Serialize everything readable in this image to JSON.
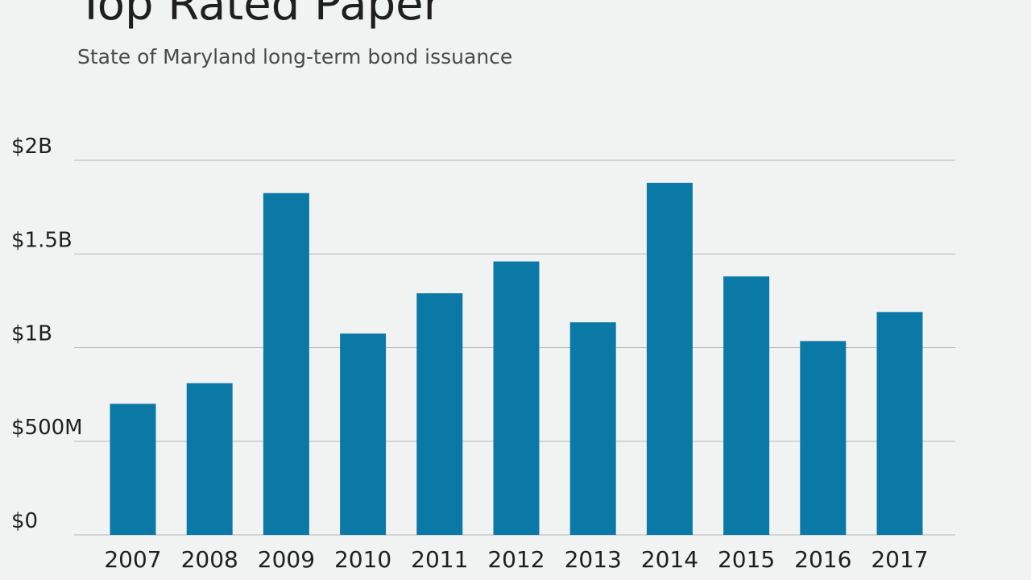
{
  "title": "Top Rated Paper",
  "subtitle": "State of Maryland long-term bond issuance",
  "chart_data": {
    "type": "bar",
    "title": "Top Rated Paper",
    "subtitle": "State of Maryland long-term bond issuance",
    "xlabel": "",
    "ylabel": "",
    "categories": [
      "2007",
      "2008",
      "2009",
      "2010",
      "2011",
      "2012",
      "2013",
      "2014",
      "2015",
      "2016",
      "2017"
    ],
    "values": [
      700,
      810,
      1825,
      1075,
      1290,
      1460,
      1135,
      1880,
      1380,
      1035,
      1190
    ],
    "value_unit": "millions of dollars",
    "ylim": [
      0,
      2000
    ],
    "yticks": [
      {
        "value": 0,
        "label": "$0"
      },
      {
        "value": 500,
        "label": "$500M"
      },
      {
        "value": 1000,
        "label": "$1B"
      },
      {
        "value": 1500,
        "label": "$1.5B"
      },
      {
        "value": 2000,
        "label": "$2B"
      }
    ],
    "grid": true,
    "legend": "none",
    "bar_color": "#0b79a6",
    "grid_color": "#b7b7b7"
  }
}
